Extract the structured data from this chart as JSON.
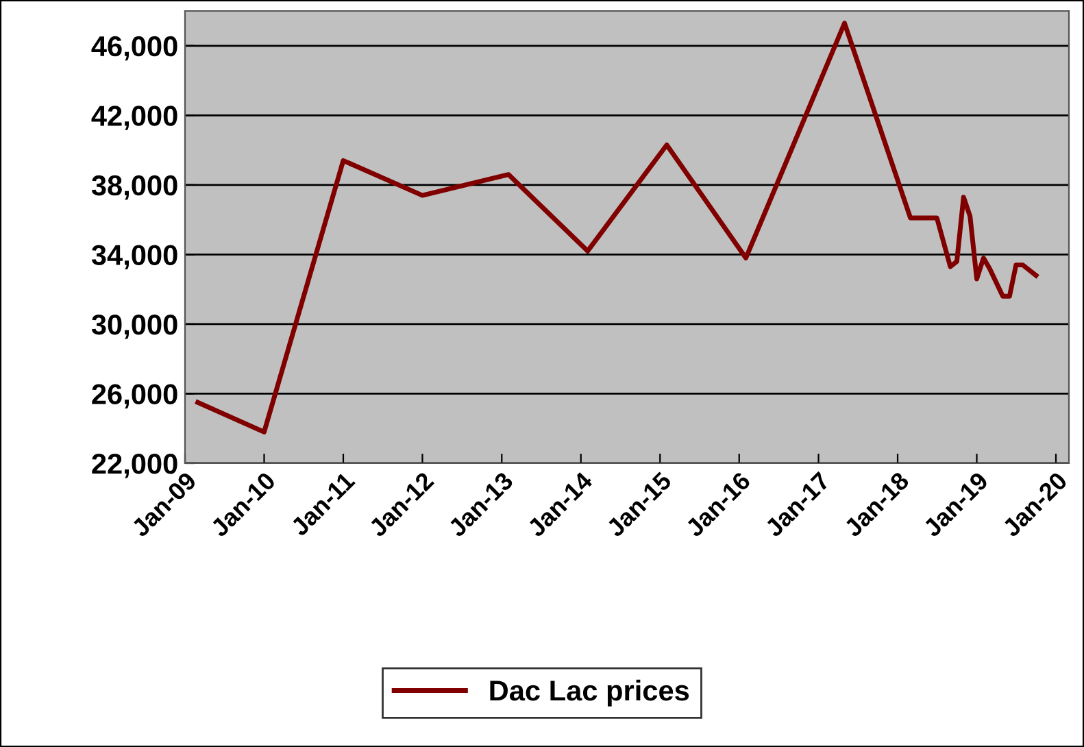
{
  "chart_data": {
    "type": "line",
    "x": [
      "2009-03",
      "2010-01",
      "2011-01",
      "2012-01",
      "2013-02",
      "2014-02",
      "2015-02",
      "2016-02",
      "2017-05",
      "2018-03",
      "2018-07",
      "2018-09",
      "2018-10",
      "2018-11",
      "2018-12",
      "2019-01",
      "2019-02",
      "2019-03",
      "2019-05",
      "2019-06",
      "2019-07",
      "2019-08",
      "2019-10"
    ],
    "series": [
      {
        "name": "Dac Lac prices",
        "color": "#800000",
        "values": [
          25500,
          23800,
          39400,
          37400,
          38600,
          34200,
          40300,
          33800,
          47300,
          36100,
          36100,
          33300,
          33600,
          37300,
          36200,
          32600,
          33800,
          33200,
          31600,
          31600,
          33400,
          33400,
          32800
        ]
      }
    ],
    "ylim": [
      22000,
      48000
    ],
    "yticks": [
      {
        "value": 22000,
        "label": "22,000"
      },
      {
        "value": 26000,
        "label": "26,000"
      },
      {
        "value": 30000,
        "label": "30,000"
      },
      {
        "value": 34000,
        "label": "34,000"
      },
      {
        "value": 38000,
        "label": "38,000"
      },
      {
        "value": 42000,
        "label": "42,000"
      },
      {
        "value": 46000,
        "label": "46,000"
      }
    ],
    "xlim": [
      "2009-01",
      "2020-03"
    ],
    "xticks": [
      {
        "value": "2009-01",
        "label": "Jan-09"
      },
      {
        "value": "2010-01",
        "label": "Jan-10"
      },
      {
        "value": "2011-01",
        "label": "Jan-11"
      },
      {
        "value": "2012-01",
        "label": "Jan-12"
      },
      {
        "value": "2013-01",
        "label": "Jan-13"
      },
      {
        "value": "2014-01",
        "label": "Jan-14"
      },
      {
        "value": "2015-01",
        "label": "Jan-15"
      },
      {
        "value": "2016-01",
        "label": "Jan-16"
      },
      {
        "value": "2017-01",
        "label": "Jan-17"
      },
      {
        "value": "2018-01",
        "label": "Jan-18"
      },
      {
        "value": "2019-01",
        "label": "Jan-19"
      },
      {
        "value": "2020-01",
        "label": "Jan-20"
      }
    ],
    "grid": "y",
    "legend": "bottom",
    "marker": "none",
    "line_style": "solid"
  }
}
